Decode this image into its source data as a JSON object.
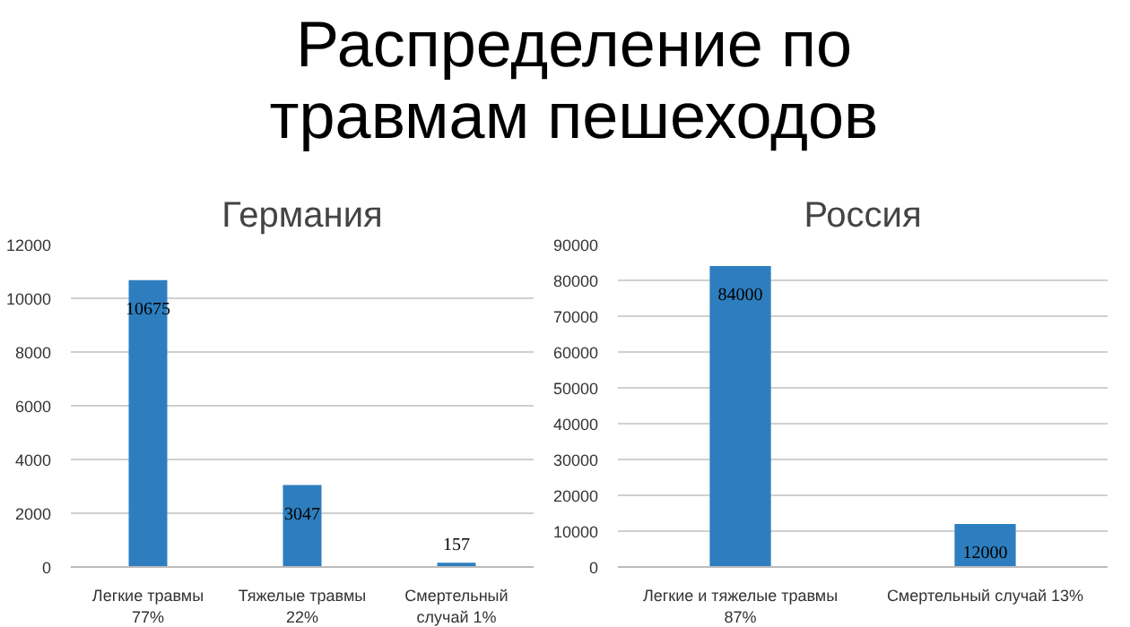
{
  "chart_data": [
    {
      "type": "other",
      "title": "Распределение по травмам пешеходов"
    },
    {
      "type": "bar",
      "title": "Германия",
      "categories": [
        "Легкие травмы 77%",
        "Тяжелые травмы 22%",
        "Смертельный случай 1%"
      ],
      "values": [
        10675,
        3047,
        157
      ],
      "color": "#2e7ebf",
      "ylim": [
        0,
        12000
      ],
      "yticks": [
        0,
        2000,
        4000,
        6000,
        8000,
        10000,
        12000
      ],
      "grid": "y",
      "data_labels": true
    },
    {
      "type": "bar",
      "title": "Россия",
      "categories": [
        "Легкие и тяжелые травмы 87%",
        "Смертельный случай 13%"
      ],
      "values": [
        84000,
        12000
      ],
      "color": "#2e7ebf",
      "ylim": [
        0,
        90000
      ],
      "yticks": [
        0,
        10000,
        20000,
        30000,
        40000,
        50000,
        60000,
        70000,
        80000,
        90000
      ],
      "grid": "y",
      "data_labels": true
    }
  ]
}
